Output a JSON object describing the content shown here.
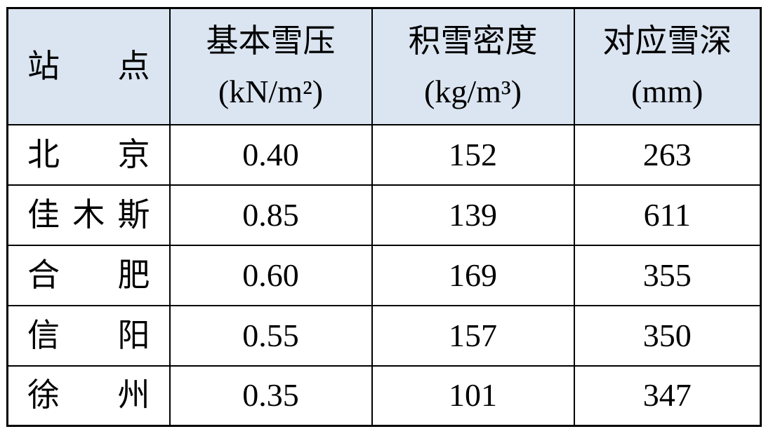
{
  "colors": {
    "header_bg": "#dbe5f1",
    "border": "#000000",
    "text": "#000000",
    "body_bg": "#ffffff"
  },
  "table": {
    "header": {
      "station": {
        "title": "站 点",
        "unit": ""
      },
      "pressure": {
        "title": "基本雪压",
        "unit": "(kN/m²)"
      },
      "density": {
        "title": "积雪密度",
        "unit": "(kg/m³)"
      },
      "depth": {
        "title": "对应雪深",
        "unit": "(mm)"
      }
    },
    "rows": [
      {
        "station": "北 京",
        "pressure": "0.40",
        "density": "152",
        "depth": "263"
      },
      {
        "station": "佳木斯",
        "pressure": "0.85",
        "density": "139",
        "depth": "611"
      },
      {
        "station": "合 肥",
        "pressure": "0.60",
        "density": "169",
        "depth": "355"
      },
      {
        "station": "信 阳",
        "pressure": "0.55",
        "density": "157",
        "depth": "350"
      },
      {
        "station": "徐 州",
        "pressure": "0.35",
        "density": "101",
        "depth": "347"
      }
    ]
  }
}
